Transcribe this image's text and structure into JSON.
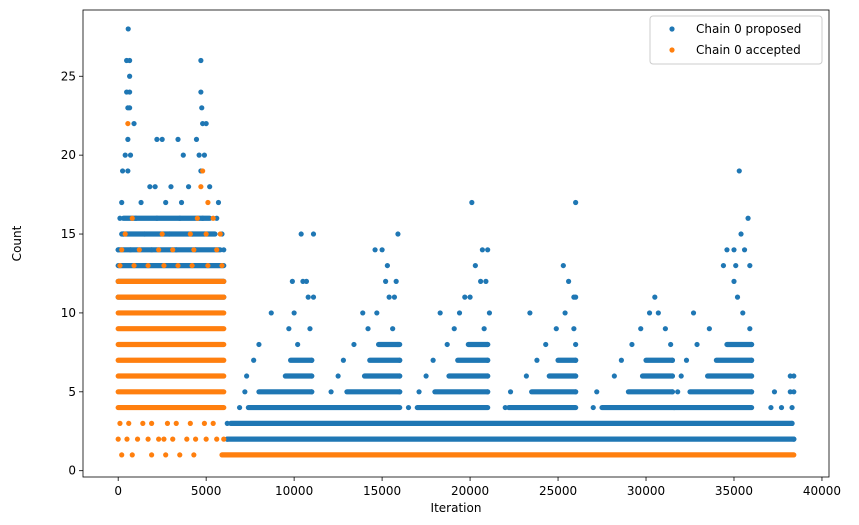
{
  "chart_data": {
    "type": "scatter",
    "xlabel": "Iteration",
    "ylabel": "Count",
    "xlim": [
      -2000,
      40400
    ],
    "ylim": [
      -0.4,
      29.2
    ],
    "x_ticks": [
      0,
      5000,
      10000,
      15000,
      20000,
      25000,
      30000,
      35000,
      40000
    ],
    "y_ticks": [
      0,
      5,
      10,
      15,
      20,
      25
    ],
    "legend_position": "top-right",
    "series": [
      {
        "name": "Chain 0 proposed",
        "color": "#1f77b4",
        "points": [
          [
            570,
            28
          ],
          [
            480,
            26
          ],
          [
            650,
            26
          ],
          [
            4700,
            26
          ],
          [
            650,
            25
          ],
          [
            480,
            24
          ],
          [
            650,
            24
          ],
          [
            4700,
            24
          ],
          [
            550,
            23
          ],
          [
            4750,
            23
          ],
          [
            650,
            23
          ],
          [
            4800,
            22
          ],
          [
            5000,
            22
          ],
          [
            900,
            22
          ],
          [
            550,
            21
          ],
          [
            2200,
            21
          ],
          [
            2500,
            21
          ],
          [
            3400,
            21
          ],
          [
            4450,
            21
          ],
          [
            400,
            20
          ],
          [
            3700,
            20
          ],
          [
            4600,
            20
          ],
          [
            4900,
            20
          ],
          [
            700,
            20
          ],
          [
            35300,
            19
          ],
          [
            250,
            19
          ],
          [
            4700,
            19
          ],
          [
            550,
            19
          ],
          [
            1800,
            18
          ],
          [
            2100,
            18
          ],
          [
            3000,
            18
          ],
          [
            4000,
            18
          ],
          [
            5200,
            18
          ],
          [
            20100,
            17
          ],
          [
            26000,
            17
          ],
          [
            200,
            17
          ],
          [
            1300,
            17
          ],
          [
            2700,
            17
          ],
          [
            3600,
            17
          ],
          [
            5700,
            17
          ],
          [
            35800,
            16
          ],
          [
            100,
            16
          ],
          [
            1000,
            16
          ],
          [
            2200,
            16
          ],
          [
            3500,
            16
          ],
          [
            4800,
            16
          ],
          [
            5600,
            16
          ],
          [
            10400,
            15
          ],
          [
            11100,
            15
          ],
          [
            15900,
            15
          ],
          [
            35400,
            15
          ],
          [
            300,
            15
          ],
          [
            1500,
            15
          ],
          [
            2900,
            15
          ],
          [
            4200,
            15
          ],
          [
            5900,
            15
          ],
          [
            14600,
            14
          ],
          [
            15000,
            14
          ],
          [
            20700,
            14
          ],
          [
            21000,
            14
          ],
          [
            34600,
            14
          ],
          [
            35000,
            14
          ],
          [
            35600,
            14
          ],
          [
            0,
            14
          ],
          [
            700,
            14
          ],
          [
            1900,
            14
          ],
          [
            3300,
            14
          ],
          [
            4400,
            14
          ],
          [
            6000,
            14
          ],
          [
            15300,
            13
          ],
          [
            20300,
            13
          ],
          [
            25300,
            13
          ],
          [
            34400,
            13
          ],
          [
            35100,
            13
          ],
          [
            35900,
            13
          ],
          [
            9900,
            12
          ],
          [
            10500,
            12
          ],
          [
            10700,
            12
          ],
          [
            15200,
            12
          ],
          [
            15800,
            12
          ],
          [
            20600,
            12
          ],
          [
            20900,
            12
          ],
          [
            25600,
            12
          ],
          [
            35000,
            12
          ],
          [
            10800,
            11
          ],
          [
            11100,
            11
          ],
          [
            15400,
            11
          ],
          [
            15700,
            11
          ],
          [
            19700,
            11
          ],
          [
            20000,
            11
          ],
          [
            25900,
            11
          ],
          [
            26000,
            11
          ],
          [
            30500,
            11
          ],
          [
            35200,
            11
          ],
          [
            8700,
            10
          ],
          [
            10000,
            10
          ],
          [
            13900,
            10
          ],
          [
            14700,
            10
          ],
          [
            18300,
            10
          ],
          [
            19400,
            10
          ],
          [
            21100,
            10
          ],
          [
            23400,
            10
          ],
          [
            25400,
            10
          ],
          [
            30200,
            10
          ],
          [
            30700,
            10
          ],
          [
            32700,
            10
          ],
          [
            35500,
            10
          ],
          [
            9700,
            9
          ],
          [
            10900,
            9
          ],
          [
            14200,
            9
          ],
          [
            15600,
            9
          ],
          [
            19100,
            9
          ],
          [
            20800,
            9
          ],
          [
            24900,
            9
          ],
          [
            25900,
            9
          ],
          [
            29700,
            9
          ],
          [
            31100,
            9
          ],
          [
            33600,
            9
          ],
          [
            35900,
            9
          ],
          [
            8000,
            8
          ],
          [
            10200,
            8
          ],
          [
            13400,
            8
          ],
          [
            15900,
            8
          ],
          [
            18700,
            8
          ],
          [
            21000,
            8
          ],
          [
            24300,
            8
          ],
          [
            26000,
            8
          ],
          [
            29200,
            8
          ],
          [
            31400,
            8
          ],
          [
            32900,
            8
          ],
          [
            36000,
            8
          ],
          [
            7700,
            7
          ],
          [
            11000,
            7
          ],
          [
            12800,
            7
          ],
          [
            16000,
            7
          ],
          [
            17900,
            7
          ],
          [
            21000,
            7
          ],
          [
            23800,
            7
          ],
          [
            26000,
            7
          ],
          [
            28600,
            7
          ],
          [
            31500,
            7
          ],
          [
            32300,
            7
          ],
          [
            36000,
            7
          ],
          [
            7300,
            6
          ],
          [
            11000,
            6
          ],
          [
            12500,
            6
          ],
          [
            16000,
            6
          ],
          [
            17500,
            6
          ],
          [
            21000,
            6
          ],
          [
            23200,
            6
          ],
          [
            26000,
            6
          ],
          [
            28200,
            6
          ],
          [
            31500,
            6
          ],
          [
            32000,
            6
          ],
          [
            36000,
            6
          ],
          [
            38200,
            6
          ],
          [
            38400,
            6
          ],
          [
            7200,
            5
          ],
          [
            11000,
            5
          ],
          [
            12100,
            5
          ],
          [
            16000,
            5
          ],
          [
            17100,
            5
          ],
          [
            21000,
            5
          ],
          [
            22300,
            5
          ],
          [
            26000,
            5
          ],
          [
            27200,
            5
          ],
          [
            31500,
            5
          ],
          [
            31800,
            5
          ],
          [
            36000,
            5
          ],
          [
            37300,
            5
          ],
          [
            38200,
            5
          ],
          [
            38400,
            5
          ],
          [
            6900,
            4
          ],
          [
            16500,
            4
          ],
          [
            22000,
            4
          ],
          [
            27000,
            4
          ],
          [
            31600,
            4
          ],
          [
            37100,
            4
          ],
          [
            37700,
            4
          ],
          [
            38300,
            4
          ],
          [
            6200,
            3
          ],
          [
            38300,
            3
          ],
          [
            6200,
            2
          ],
          [
            38400,
            2
          ]
        ],
        "bands": [
          {
            "y": 2,
            "x_start": 6200,
            "x_end": 38400
          },
          {
            "y": 3,
            "x_start": 6400,
            "x_end": 38300
          },
          {
            "y": 4,
            "x_start": 7400,
            "x_end": 16000
          },
          {
            "y": 4,
            "x_start": 17000,
            "x_end": 21000
          },
          {
            "y": 4,
            "x_start": 22200,
            "x_end": 26000
          },
          {
            "y": 4,
            "x_start": 27500,
            "x_end": 36000
          },
          {
            "y": 5,
            "x_start": 8000,
            "x_end": 11000
          },
          {
            "y": 5,
            "x_start": 13000,
            "x_end": 16000
          },
          {
            "y": 5,
            "x_start": 18000,
            "x_end": 21000
          },
          {
            "y": 5,
            "x_start": 23500,
            "x_end": 26000
          },
          {
            "y": 5,
            "x_start": 29000,
            "x_end": 31500
          },
          {
            "y": 5,
            "x_start": 32500,
            "x_end": 36000
          },
          {
            "y": 6,
            "x_start": 9500,
            "x_end": 11000
          },
          {
            "y": 6,
            "x_start": 14000,
            "x_end": 16000
          },
          {
            "y": 6,
            "x_start": 18800,
            "x_end": 21000
          },
          {
            "y": 6,
            "x_start": 24500,
            "x_end": 26000
          },
          {
            "y": 6,
            "x_start": 29800,
            "x_end": 31500
          },
          {
            "y": 6,
            "x_start": 33500,
            "x_end": 36000
          },
          {
            "y": 7,
            "x_start": 9800,
            "x_end": 11000
          },
          {
            "y": 7,
            "x_start": 14300,
            "x_end": 16000
          },
          {
            "y": 7,
            "x_start": 19300,
            "x_end": 21000
          },
          {
            "y": 7,
            "x_start": 25000,
            "x_end": 26000
          },
          {
            "y": 7,
            "x_start": 30000,
            "x_end": 31500
          },
          {
            "y": 7,
            "x_start": 34000,
            "x_end": 36000
          },
          {
            "y": 8,
            "x_start": 14800,
            "x_end": 16000
          },
          {
            "y": 8,
            "x_start": 19900,
            "x_end": 21000
          },
          {
            "y": 8,
            "x_start": 34600,
            "x_end": 36000
          },
          {
            "y": 11,
            "x_start": 0,
            "x_end": 6000
          },
          {
            "y": 12,
            "x_start": 0,
            "x_end": 6000
          },
          {
            "y": 13,
            "x_start": 0,
            "x_end": 6000
          },
          {
            "y": 14,
            "x_start": 0,
            "x_end": 5800
          },
          {
            "y": 15,
            "x_start": 200,
            "x_end": 5500
          },
          {
            "y": 16,
            "x_start": 300,
            "x_end": 5200
          }
        ]
      },
      {
        "name": "Chain 0 accepted",
        "color": "#ff7f0e",
        "points": [
          [
            550,
            22
          ],
          [
            4800,
            19
          ],
          [
            4700,
            18
          ],
          [
            5100,
            17
          ],
          [
            800,
            16
          ],
          [
            4500,
            16
          ],
          [
            5400,
            16
          ],
          [
            400,
            15
          ],
          [
            2500,
            15
          ],
          [
            4100,
            15
          ],
          [
            5000,
            15
          ],
          [
            5800,
            15
          ],
          [
            200,
            14
          ],
          [
            1200,
            14
          ],
          [
            2300,
            14
          ],
          [
            3100,
            14
          ],
          [
            4300,
            14
          ],
          [
            5600,
            14
          ],
          [
            100,
            13
          ],
          [
            900,
            13
          ],
          [
            1700,
            13
          ],
          [
            2600,
            13
          ],
          [
            3400,
            13
          ],
          [
            4200,
            13
          ],
          [
            5100,
            13
          ],
          [
            5900,
            13
          ],
          [
            100,
            3
          ],
          [
            600,
            3
          ],
          [
            1400,
            3
          ],
          [
            1900,
            3
          ],
          [
            2800,
            3
          ],
          [
            3300,
            3
          ],
          [
            4100,
            3
          ],
          [
            4900,
            3
          ],
          [
            5400,
            3
          ],
          [
            0,
            2
          ],
          [
            500,
            2
          ],
          [
            1100,
            2
          ],
          [
            1700,
            2
          ],
          [
            2300,
            2
          ],
          [
            2600,
            2
          ],
          [
            3100,
            2
          ],
          [
            3900,
            2
          ],
          [
            4400,
            2
          ],
          [
            5000,
            2
          ],
          [
            5600,
            2
          ],
          [
            6000,
            2
          ],
          [
            200,
            1
          ],
          [
            800,
            1
          ],
          [
            1900,
            1
          ],
          [
            2700,
            1
          ],
          [
            3500,
            1
          ],
          [
            4300,
            1
          ]
        ],
        "bands": [
          {
            "y": 1,
            "x_start": 5900,
            "x_end": 38400
          },
          {
            "y": 4,
            "x_start": 0,
            "x_end": 6000
          },
          {
            "y": 5,
            "x_start": 0,
            "x_end": 6000
          },
          {
            "y": 6,
            "x_start": 0,
            "x_end": 6000
          },
          {
            "y": 7,
            "x_start": 0,
            "x_end": 6000
          },
          {
            "y": 8,
            "x_start": 0,
            "x_end": 6000
          },
          {
            "y": 9,
            "x_start": 0,
            "x_end": 6000
          },
          {
            "y": 10,
            "x_start": 0,
            "x_end": 6000
          },
          {
            "y": 11,
            "x_start": 0,
            "x_end": 6000
          },
          {
            "y": 12,
            "x_start": 0,
            "x_end": 6000
          }
        ]
      }
    ]
  }
}
